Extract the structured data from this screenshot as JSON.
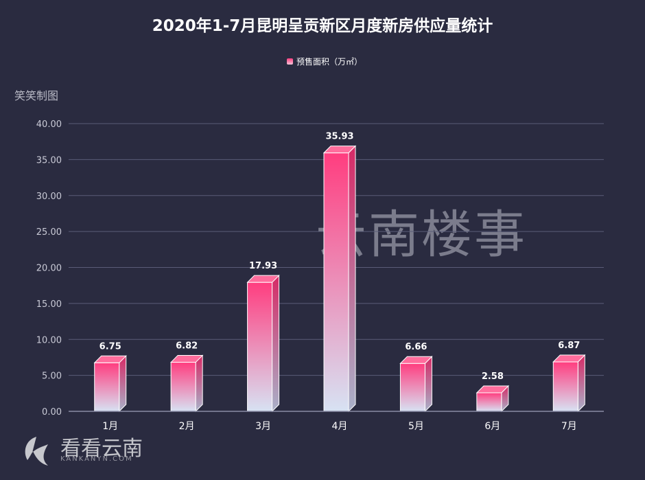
{
  "colors": {
    "background": "#2a2b40",
    "bar_top": "#ff3d7f",
    "bar_bottom": "#d7e2f3",
    "grid": "#5a5c78",
    "text": "#ffffff",
    "tick_text": "#c9cad6"
  },
  "watermarks": {
    "corner": "笑笑制图",
    "center": "云南楼事",
    "logo_text": "看看云南",
    "logo_sub": "KANKANYN.COM"
  },
  "chart_data": {
    "type": "bar",
    "title": "2020年1-7月昆明呈贡新区月度新房供应量统计",
    "categories": [
      "1月",
      "2月",
      "3月",
      "4月",
      "5月",
      "6月",
      "7月"
    ],
    "series": [
      {
        "name": "预售面积（万㎡）",
        "values": [
          6.75,
          6.82,
          17.93,
          35.93,
          6.66,
          2.58,
          6.87
        ]
      }
    ],
    "data_labels": [
      "6.75",
      "6.82",
      "17.93",
      "35.93",
      "6.66",
      "2.58",
      "6.87"
    ],
    "y_ticks": [
      "0.00",
      "5.00",
      "10.00",
      "15.00",
      "20.00",
      "25.00",
      "30.00",
      "35.00",
      "40.00"
    ],
    "ylim": [
      0,
      40
    ],
    "grid": true,
    "legend_position": "top-center",
    "xlabel": "",
    "ylabel": ""
  }
}
